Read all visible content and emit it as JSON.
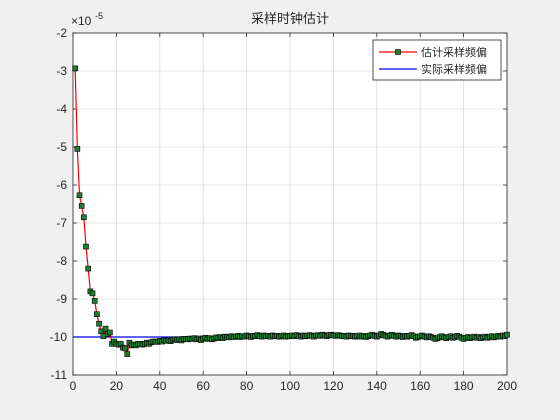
{
  "chart_data": {
    "type": "line",
    "title": "采样时钟估计",
    "xlabel": "",
    "ylabel": "",
    "xlim": [
      0,
      200
    ],
    "ylim": [
      -11,
      -2
    ],
    "x_ticks": [
      0,
      20,
      40,
      60,
      80,
      100,
      120,
      140,
      160,
      180,
      200
    ],
    "y_ticks": [
      -11,
      -10,
      -9,
      -8,
      -7,
      -6,
      -5,
      -4,
      -3,
      -2
    ],
    "y_exponent_label": "×10",
    "y_exponent_power": "-5",
    "grid": true,
    "legend_position": "top-right",
    "series": [
      {
        "name": "估计采样频偏",
        "color": "#ff0000",
        "marker": "square",
        "marker_face": "#1e7d32",
        "marker_edge": "#000000",
        "x": [
          1,
          2,
          3,
          4,
          5,
          6,
          7,
          8,
          9,
          10,
          11,
          12,
          13,
          14,
          15,
          16,
          17,
          18,
          19,
          20,
          21,
          22,
          23,
          24,
          25,
          26,
          27,
          28,
          29,
          30,
          31,
          32,
          33,
          34,
          35,
          36,
          37,
          38,
          39,
          40,
          41,
          42,
          43,
          44,
          45,
          46,
          47,
          48,
          49,
          50,
          51,
          52,
          53,
          54,
          55,
          56,
          57,
          58,
          59,
          60,
          61,
          62,
          63,
          64,
          65,
          66,
          67,
          68,
          69,
          70,
          71,
          72,
          73,
          74,
          75,
          76,
          77,
          78,
          79,
          80,
          81,
          82,
          83,
          84,
          85,
          86,
          87,
          88,
          89,
          90,
          91,
          92,
          93,
          94,
          95,
          96,
          97,
          98,
          99,
          100,
          101,
          102,
          103,
          104,
          105,
          106,
          107,
          108,
          109,
          110,
          111,
          112,
          113,
          114,
          115,
          116,
          117,
          118,
          119,
          120,
          121,
          122,
          123,
          124,
          125,
          126,
          127,
          128,
          129,
          130,
          131,
          132,
          133,
          134,
          135,
          136,
          137,
          138,
          139,
          140,
          141,
          142,
          143,
          144,
          145,
          146,
          147,
          148,
          149,
          150,
          151,
          152,
          153,
          154,
          155,
          156,
          157,
          158,
          159,
          160,
          161,
          162,
          163,
          164,
          165,
          166,
          167,
          168,
          169,
          170,
          171,
          172,
          173,
          174,
          175,
          176,
          177,
          178,
          179,
          180,
          181,
          182,
          183,
          184,
          185,
          186,
          187,
          188,
          189,
          190,
          191,
          192,
          193,
          194,
          195,
          196,
          197,
          198,
          199,
          200
        ],
        "values": [
          -2.93,
          -5.05,
          -6.27,
          -6.55,
          -6.85,
          -7.62,
          -8.2,
          -8.8,
          -8.85,
          -9.05,
          -9.4,
          -9.65,
          -9.85,
          -9.98,
          -9.78,
          -9.92,
          -9.88,
          -10.18,
          -10.12,
          -10.18,
          -10.2,
          -10.18,
          -10.28,
          -10.3,
          -10.45,
          -10.15,
          -10.22,
          -10.2,
          -10.22,
          -10.18,
          -10.18,
          -10.2,
          -10.18,
          -10.15,
          -10.18,
          -10.14,
          -10.12,
          -10.12,
          -10.13,
          -10.1,
          -10.12,
          -10.08,
          -10.1,
          -10.09,
          -10.11,
          -10.07,
          -10.06,
          -10.08,
          -10.06,
          -10.09,
          -10.05,
          -10.05,
          -10.06,
          -10.04,
          -10.05,
          -10.03,
          -10.06,
          -10.04,
          -10.08,
          -10.04,
          -10.02,
          -10.05,
          -10.03,
          -10.06,
          -10.04,
          -10.01,
          -10.03,
          -10.0,
          -10.03,
          -9.99,
          -10.0,
          -10.01,
          -9.98,
          -10.0,
          -9.99,
          -9.97,
          -10.0,
          -9.98,
          -9.99,
          -9.96,
          -9.98,
          -10.0,
          -9.97,
          -9.98,
          -9.95,
          -9.97,
          -9.99,
          -9.96,
          -9.98,
          -9.97,
          -9.99,
          -9.96,
          -9.98,
          -9.97,
          -9.99,
          -9.98,
          -9.96,
          -9.99,
          -9.97,
          -9.98,
          -9.96,
          -9.98,
          -9.95,
          -9.97,
          -9.99,
          -9.96,
          -9.98,
          -9.97,
          -9.95,
          -9.97,
          -9.99,
          -9.96,
          -9.95,
          -9.97,
          -9.94,
          -9.96,
          -9.98,
          -9.95,
          -9.94,
          -9.96,
          -9.97,
          -9.95,
          -9.96,
          -9.98,
          -9.97,
          -9.99,
          -9.96,
          -9.98,
          -9.97,
          -9.99,
          -9.98,
          -9.96,
          -9.99,
          -9.97,
          -10.0,
          -9.98,
          -9.96,
          -9.94,
          -9.97,
          -9.99,
          -9.96,
          -9.92,
          -9.94,
          -9.97,
          -9.99,
          -9.96,
          -9.94,
          -9.97,
          -9.99,
          -9.96,
          -9.98,
          -10.0,
          -9.97,
          -9.99,
          -9.97,
          -9.95,
          -9.98,
          -10.02,
          -10.0,
          -9.98,
          -9.96,
          -9.99,
          -10.01,
          -9.98,
          -10.0,
          -10.02,
          -10.05,
          -10.03,
          -10.0,
          -9.98,
          -10.01,
          -10.03,
          -10.0,
          -9.98,
          -10.02,
          -10.0,
          -9.97,
          -9.99,
          -10.02,
          -10.05,
          -10.02,
          -10.0,
          -10.03,
          -10.01,
          -9.99,
          -10.02,
          -10.0,
          -10.03,
          -10.01,
          -9.99,
          -10.02,
          -10.0,
          -9.98,
          -10.01,
          -9.99,
          -9.97,
          -9.99,
          -9.96,
          -9.98,
          -9.94
        ]
      },
      {
        "name": "实际采样频偏",
        "color": "#0000ff",
        "x": [
          0,
          200
        ],
        "values": [
          -10,
          -10
        ]
      }
    ]
  }
}
